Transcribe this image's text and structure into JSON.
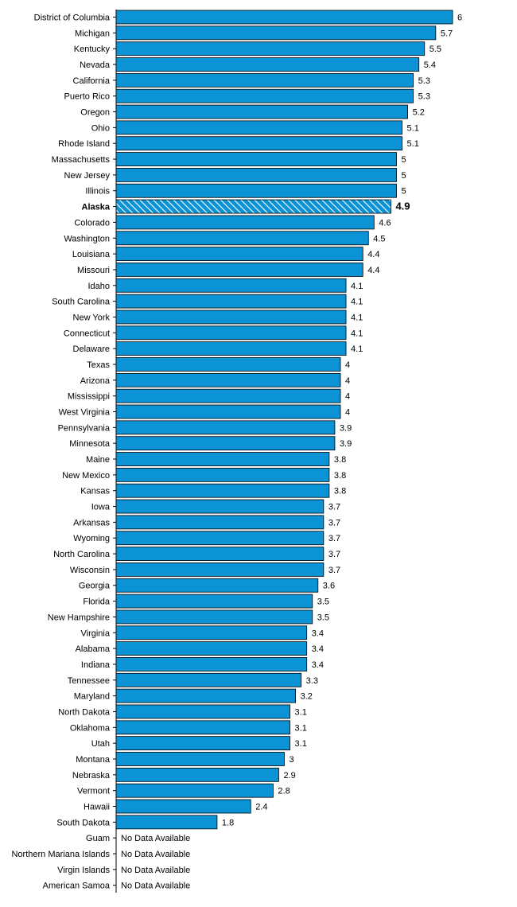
{
  "chart_data": {
    "type": "bar",
    "orientation": "horizontal",
    "xlim": [
      0,
      6.2
    ],
    "grid": false,
    "legend": "none",
    "colors": {
      "bar": "#0b93d6",
      "highlight": "#0b93d6",
      "stroke": "#000000"
    },
    "highlight": "Alaska",
    "missing_label": "No Data Available",
    "categories": [
      "District of Columbia",
      "Michigan",
      "Kentucky",
      "Nevada",
      "California",
      "Puerto Rico",
      "Oregon",
      "Ohio",
      "Rhode Island",
      "Massachusetts",
      "New Jersey",
      "Illinois",
      "Alaska",
      "Colorado",
      "Washington",
      "Louisiana",
      "Missouri",
      "Idaho",
      "South Carolina",
      "New York",
      "Connecticut",
      "Delaware",
      "Texas",
      "Arizona",
      "Mississippi",
      "West Virginia",
      "Pennsylvania",
      "Minnesota",
      "Maine",
      "New Mexico",
      "Kansas",
      "Iowa",
      "Arkansas",
      "Wyoming",
      "North Carolina",
      "Wisconsin",
      "Georgia",
      "Florida",
      "New Hampshire",
      "Virginia",
      "Alabama",
      "Indiana",
      "Tennessee",
      "Maryland",
      "North Dakota",
      "Oklahoma",
      "Utah",
      "Montana",
      "Nebraska",
      "Vermont",
      "Hawaii",
      "South Dakota",
      "Guam",
      "Northern Mariana Islands",
      "Virgin Islands",
      "American Samoa"
    ],
    "values": [
      6,
      5.7,
      5.5,
      5.4,
      5.3,
      5.3,
      5.2,
      5.1,
      5.1,
      5,
      5,
      5,
      4.9,
      4.6,
      4.5,
      4.4,
      4.4,
      4.1,
      4.1,
      4.1,
      4.1,
      4.1,
      4,
      4,
      4,
      4,
      3.9,
      3.9,
      3.8,
      3.8,
      3.8,
      3.7,
      3.7,
      3.7,
      3.7,
      3.7,
      3.6,
      3.5,
      3.5,
      3.4,
      3.4,
      3.4,
      3.3,
      3.2,
      3.1,
      3.1,
      3.1,
      3,
      2.9,
      2.8,
      2.4,
      1.8,
      null,
      null,
      null,
      null
    ]
  }
}
